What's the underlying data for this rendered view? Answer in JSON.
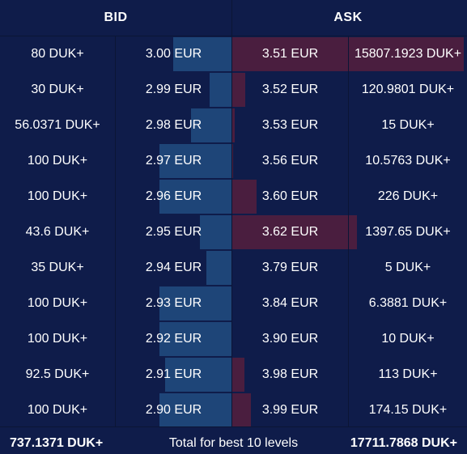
{
  "header": {
    "bid_label": "BID",
    "ask_label": "ASK"
  },
  "colors": {
    "background": "#0f1c4a",
    "bid_bar": "#1e4578",
    "ask_bar": "#4a1e3f",
    "text": "#ffffff"
  },
  "bids": [
    {
      "qty": "80 DUK+",
      "price": "3.00 EUR",
      "depth": 0.5
    },
    {
      "qty": "30 DUK+",
      "price": "2.99 EUR",
      "depth": 0.19
    },
    {
      "qty": "56.0371 DUK+",
      "price": "2.98 EUR",
      "depth": 0.35
    },
    {
      "qty": "100 DUK+",
      "price": "2.97 EUR",
      "depth": 0.62
    },
    {
      "qty": "100 DUK+",
      "price": "2.96 EUR",
      "depth": 0.62
    },
    {
      "qty": "43.6 DUK+",
      "price": "2.95 EUR",
      "depth": 0.27
    },
    {
      "qty": "35 DUK+",
      "price": "2.94 EUR",
      "depth": 0.22
    },
    {
      "qty": "100 DUK+",
      "price": "2.93 EUR",
      "depth": 0.62
    },
    {
      "qty": "100 DUK+",
      "price": "2.92 EUR",
      "depth": 0.62
    },
    {
      "qty": "92.5 DUK+",
      "price": "2.91 EUR",
      "depth": 0.57
    },
    {
      "qty": "100 DUK+",
      "price": "2.90 EUR",
      "depth": 0.62
    }
  ],
  "asks": [
    {
      "price": "3.51 EUR",
      "qty": "15807.1923 DUK+",
      "depth": 1.0
    },
    {
      "price": "3.52 EUR",
      "qty": "120.9801 DUK+",
      "depth": 0.055
    },
    {
      "price": "3.53 EUR",
      "qty": "15 DUK+",
      "depth": 0.01
    },
    {
      "price": "3.56 EUR",
      "qty": "10.5763 DUK+",
      "depth": 0.005
    },
    {
      "price": "3.60 EUR",
      "qty": "226 DUK+",
      "depth": 0.105
    },
    {
      "price": "3.62 EUR",
      "qty": "1397.65 DUK+",
      "depth": 0.54
    },
    {
      "price": "3.79 EUR",
      "qty": "5 DUK+",
      "depth": 0.0
    },
    {
      "price": "3.84 EUR",
      "qty": "6.3881 DUK+",
      "depth": 0.0
    },
    {
      "price": "3.90 EUR",
      "qty": "10 DUK+",
      "depth": 0.0
    },
    {
      "price": "3.98 EUR",
      "qty": "113 DUK+",
      "depth": 0.052
    },
    {
      "price": "3.99 EUR",
      "qty": "174.15 DUK+",
      "depth": 0.08
    }
  ],
  "footer": {
    "total_bid": "737.1371 DUK+",
    "label": "Total for best 10 levels",
    "total_ask": "17711.7868 DUK+"
  }
}
